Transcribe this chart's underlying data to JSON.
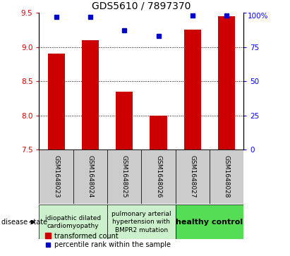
{
  "title": "GDS5610 / 7897370",
  "samples": [
    "GSM1648023",
    "GSM1648024",
    "GSM1648025",
    "GSM1648026",
    "GSM1648027",
    "GSM1648028"
  ],
  "red_values": [
    8.9,
    9.1,
    8.35,
    8.0,
    9.25,
    9.45
  ],
  "blue_values": [
    97,
    97,
    87,
    83,
    98,
    98
  ],
  "ylim_left": [
    7.5,
    9.5
  ],
  "ylim_right": [
    0,
    100
  ],
  "yticks_left": [
    7.5,
    8.0,
    8.5,
    9.0,
    9.5
  ],
  "yticks_right": [
    0,
    25,
    50,
    75,
    100
  ],
  "bar_color": "#cc0000",
  "point_color": "#0000cc",
  "bar_bottom": 7.5,
  "disease_state_label": "disease state",
  "legend_red": "transformed count",
  "legend_blue": "percentile rank within the sample",
  "title_fontsize": 10,
  "tick_fontsize": 7.5,
  "sample_fontsize": 6.5,
  "disease_fontsize": 6.5,
  "legend_fontsize": 7,
  "group1_label": "idiopathic dilated\ncardiomyopathy",
  "group2_label": "pulmonary arterial\nhypertension with\nBMPR2 mutation",
  "group3_label": "healthy control",
  "group1_color": "#ccf0cc",
  "group2_color": "#ccf0cc",
  "group3_color": "#55dd55",
  "sample_bg_color": "#cccccc"
}
